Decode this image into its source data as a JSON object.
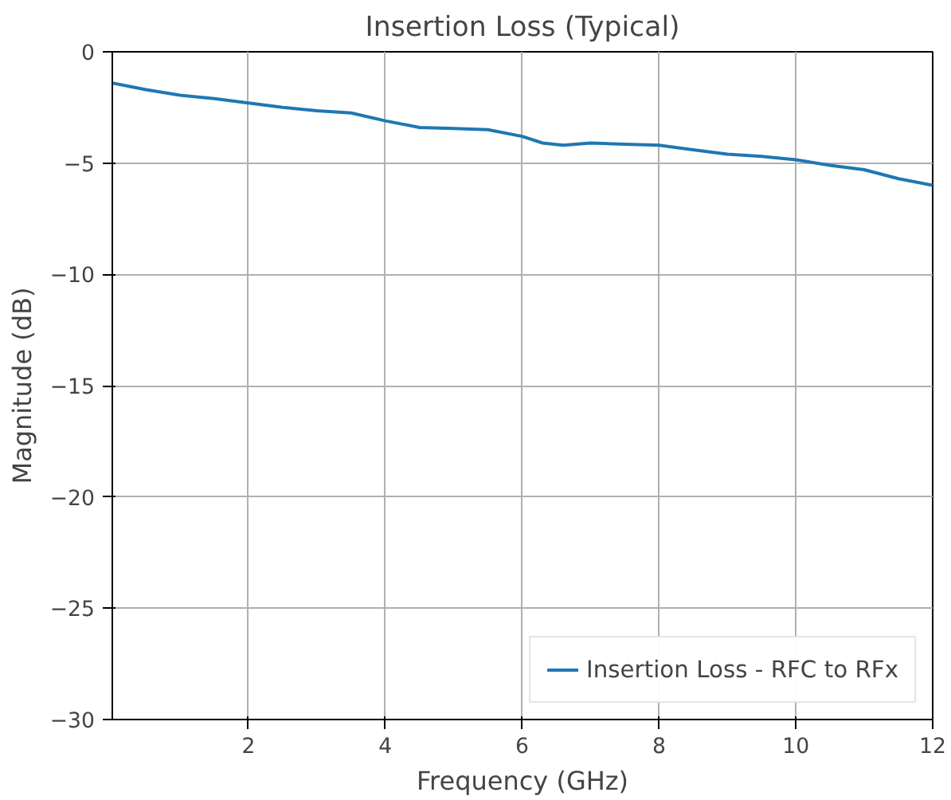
{
  "chart_data": {
    "type": "line",
    "title": "Insertion Loss (Typical)",
    "xlabel": "Frequency (GHz)",
    "ylabel": "Magnitude (dB)",
    "x": [
      0.01,
      0.5,
      1,
      1.5,
      2,
      2.5,
      3,
      3.5,
      4,
      4.5,
      5,
      5.5,
      6,
      6.3,
      6.6,
      7,
      7.5,
      8,
      8.5,
      9,
      9.5,
      10,
      10.5,
      11,
      11.5,
      12
    ],
    "series": [
      {
        "name": "Insertion Loss - RFC to RFx",
        "color": "#1f77b4",
        "values": [
          -1.4,
          -1.7,
          -1.95,
          -2.1,
          -2.3,
          -2.5,
          -2.65,
          -2.75,
          -3.1,
          -3.4,
          -3.45,
          -3.5,
          -3.8,
          -4.1,
          -4.2,
          -4.1,
          -4.15,
          -4.2,
          -4.4,
          -4.6,
          -4.7,
          -4.85,
          -5.1,
          -5.3,
          -5.7,
          -6.0
        ]
      }
    ],
    "xlim": [
      0.01,
      12
    ],
    "ylim": [
      -30,
      0
    ],
    "xticks": [
      2,
      4,
      6,
      8,
      10,
      12
    ],
    "yticks": [
      -30,
      -25,
      -20,
      -15,
      -10,
      -5,
      0
    ],
    "grid": true,
    "legend": "bottom right",
    "line_style": "solid"
  }
}
